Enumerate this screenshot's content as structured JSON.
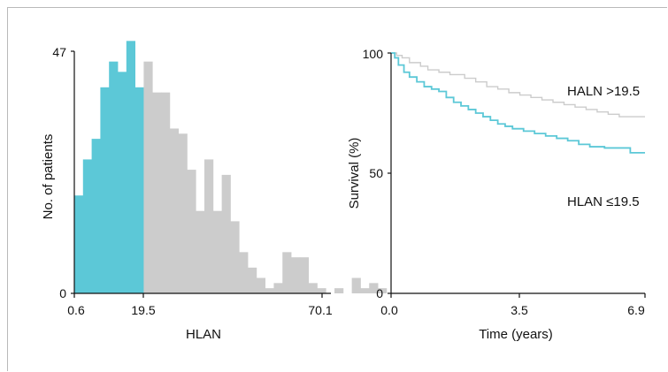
{
  "colors": {
    "low": "#5cc8d7",
    "high": "#cccccc",
    "axis": "#111111"
  },
  "chart_data": [
    {
      "type": "bar",
      "title": "",
      "xlabel": "HLAN",
      "ylabel": "No. of patients",
      "xlim": [
        0.6,
        72.5
      ],
      "ylim": [
        0,
        47
      ],
      "xticks": [
        "0.6",
        "19.5",
        "70.1"
      ],
      "yticks": [
        "0",
        "47"
      ],
      "bin_width": 2.43,
      "cutoff": 19.5,
      "series": [
        {
          "group": "low",
          "values": [
            19,
            26,
            30,
            40,
            45,
            43,
            49,
            40
          ]
        },
        {
          "group": "high",
          "values": [
            45,
            39,
            39,
            32,
            31,
            24,
            16,
            26,
            16,
            23,
            14,
            8,
            5,
            3,
            1,
            2,
            8,
            7,
            7,
            2,
            1,
            0,
            1,
            0,
            3,
            1,
            2,
            1
          ]
        }
      ]
    },
    {
      "type": "line",
      "title": "",
      "xlabel": "Time (years)",
      "ylabel": "Survival (%)",
      "xlim": [
        0,
        6.9
      ],
      "ylim": [
        0,
        100
      ],
      "xticks": [
        "0.0",
        "3.5",
        "6.9"
      ],
      "yticks": [
        "0",
        "50",
        "100"
      ],
      "series": [
        {
          "name": "HALN >19.5",
          "group": "high",
          "x": [
            0,
            0.15,
            0.3,
            0.5,
            0.8,
            1.0,
            1.3,
            1.6,
            2.0,
            2.3,
            2.6,
            2.9,
            3.2,
            3.5,
            3.8,
            4.1,
            4.4,
            4.7,
            5.0,
            5.3,
            5.6,
            5.9,
            6.2,
            6.5,
            6.9
          ],
          "y": [
            100,
            99,
            98,
            96,
            94.5,
            93,
            92,
            91,
            89.5,
            88,
            86,
            85,
            83.5,
            82.5,
            81.5,
            80.5,
            79.5,
            78.5,
            77.5,
            76.5,
            75.5,
            74.5,
            73.5,
            73.5,
            73.5
          ]
        },
        {
          "name": "HLAN ≤19.5",
          "group": "low",
          "x": [
            0,
            0.1,
            0.2,
            0.35,
            0.5,
            0.7,
            0.9,
            1.1,
            1.3,
            1.5,
            1.7,
            1.9,
            2.1,
            2.3,
            2.5,
            2.7,
            2.9,
            3.1,
            3.3,
            3.6,
            3.9,
            4.2,
            4.5,
            4.8,
            5.1,
            5.4,
            5.8,
            6.2,
            6.5,
            6.9
          ],
          "y": [
            100,
            98,
            95,
            92,
            90,
            88,
            86,
            85,
            84,
            81.5,
            79.5,
            78,
            76.5,
            75,
            73.5,
            72,
            70.5,
            69.5,
            68.5,
            67.5,
            66.5,
            65.5,
            64.5,
            63.5,
            62,
            61,
            60.5,
            60.5,
            58.5,
            58.5
          ]
        }
      ]
    }
  ]
}
